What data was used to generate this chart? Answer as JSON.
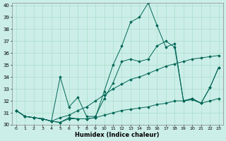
{
  "xlabel": "Humidex (Indice chaleur)",
  "background_color": "#cceee8",
  "grid_color": "#aaddcc",
  "line_color": "#006655",
  "xlim": [
    -0.5,
    23.5
  ],
  "ylim": [
    30,
    40.2
  ],
  "yticks": [
    30,
    31,
    32,
    33,
    34,
    35,
    36,
    37,
    38,
    39,
    40
  ],
  "xticks": [
    0,
    1,
    2,
    3,
    4,
    5,
    6,
    7,
    8,
    9,
    10,
    11,
    12,
    13,
    14,
    15,
    16,
    17,
    18,
    19,
    20,
    21,
    22,
    23
  ],
  "series": [
    {
      "x": [
        0,
        1,
        2,
        3,
        4,
        5,
        6,
        7,
        8,
        9,
        10,
        11,
        12,
        13,
        14,
        15,
        16,
        17,
        18,
        19,
        20,
        21,
        22,
        23
      ],
      "y": [
        31.2,
        30.7,
        30.6,
        30.5,
        30.3,
        34.0,
        31.5,
        32.3,
        30.7,
        30.7,
        32.2,
        33.5,
        35.3,
        35.5,
        35.3,
        35.5,
        36.6,
        37.0,
        36.5,
        32.0,
        32.2,
        31.8,
        33.1,
        34.8
      ]
    },
    {
      "x": [
        0,
        1,
        2,
        3,
        4,
        5,
        6,
        7,
        8,
        9,
        10,
        11,
        12,
        13,
        14,
        15,
        16,
        17,
        18,
        19,
        20,
        21,
        22,
        23
      ],
      "y": [
        31.2,
        30.7,
        30.6,
        30.5,
        30.3,
        30.2,
        30.6,
        30.5,
        30.5,
        30.6,
        32.8,
        35.0,
        36.6,
        38.6,
        39.0,
        40.2,
        38.3,
        36.5,
        36.8,
        32.0,
        32.2,
        31.8,
        33.1,
        34.8
      ]
    },
    {
      "x": [
        0,
        1,
        2,
        3,
        4,
        5,
        6,
        7,
        8,
        9,
        10,
        11,
        12,
        13,
        14,
        15,
        16,
        17,
        18,
        19,
        20,
        21,
        22,
        23
      ],
      "y": [
        31.2,
        30.7,
        30.6,
        30.5,
        30.3,
        30.6,
        30.8,
        31.2,
        31.5,
        32.0,
        32.5,
        33.0,
        33.4,
        33.8,
        34.0,
        34.3,
        34.6,
        34.9,
        35.1,
        35.3,
        35.5,
        35.6,
        35.7,
        35.8
      ]
    },
    {
      "x": [
        0,
        1,
        2,
        3,
        4,
        5,
        6,
        7,
        8,
        9,
        10,
        11,
        12,
        13,
        14,
        15,
        16,
        17,
        18,
        19,
        20,
        21,
        22,
        23
      ],
      "y": [
        31.2,
        30.7,
        30.6,
        30.5,
        30.3,
        30.2,
        30.5,
        30.5,
        30.5,
        30.6,
        30.8,
        31.0,
        31.2,
        31.3,
        31.4,
        31.5,
        31.7,
        31.8,
        32.0,
        32.0,
        32.1,
        31.8,
        32.0,
        32.2
      ]
    }
  ]
}
